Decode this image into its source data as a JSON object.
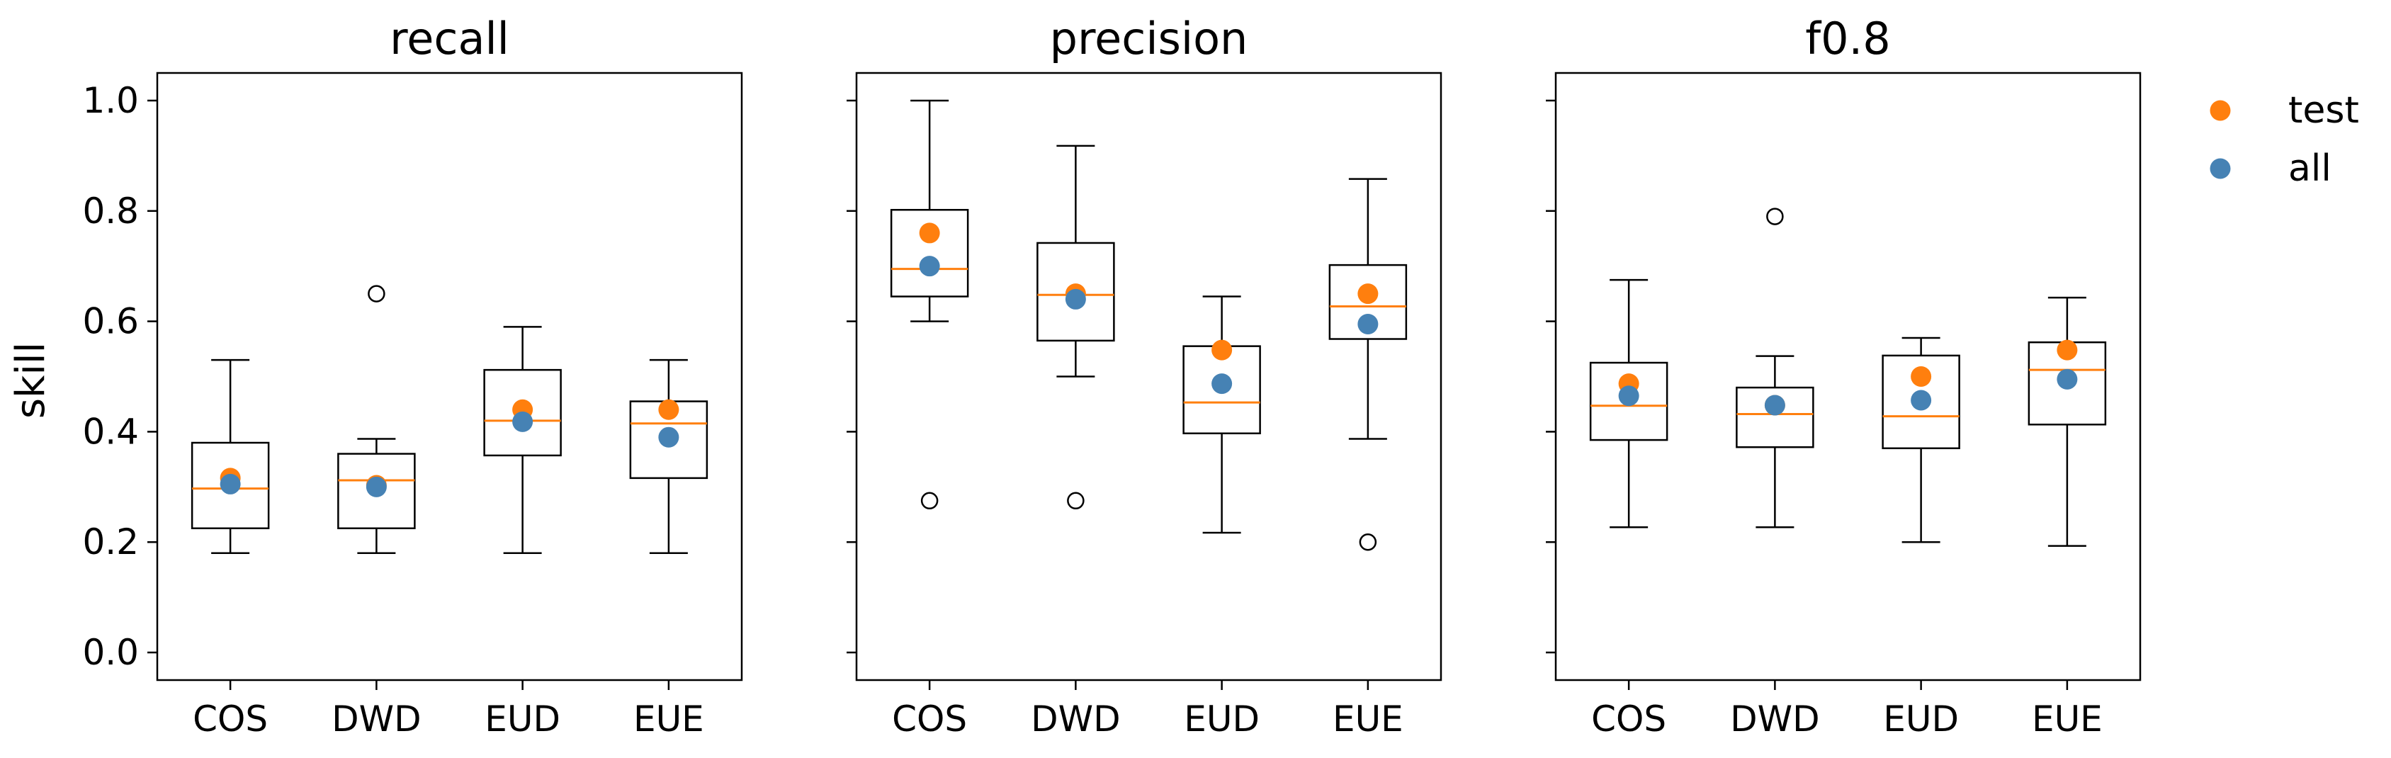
{
  "figure": {
    "ylabel": "skill"
  },
  "legend": {
    "placement": "right",
    "items": [
      {
        "label": "test",
        "color": "#ff7f0e"
      },
      {
        "label": "all",
        "color": "#4682b4"
      }
    ]
  },
  "chart_data": [
    {
      "type": "boxplot",
      "title": "recall",
      "ylabel": "skill",
      "ylim": [
        -0.05,
        1.05
      ],
      "yticks": [
        0.0,
        0.2,
        0.4,
        0.6,
        0.8,
        1.0
      ],
      "ytick_labels": [
        "0.0",
        "0.2",
        "0.4",
        "0.6",
        "0.8",
        "1.0"
      ],
      "categories": [
        "COS",
        "DWD",
        "EUD",
        "EUE"
      ],
      "boxes": [
        {
          "whisker_low": 0.18,
          "q1": 0.225,
          "median": 0.297,
          "q3": 0.38,
          "whisker_high": 0.53,
          "outliers": []
        },
        {
          "whisker_low": 0.18,
          "q1": 0.225,
          "median": 0.312,
          "q3": 0.36,
          "whisker_high": 0.387,
          "outliers": [
            0.65
          ]
        },
        {
          "whisker_low": 0.18,
          "q1": 0.357,
          "median": 0.42,
          "q3": 0.512,
          "whisker_high": 0.59,
          "outliers": []
        },
        {
          "whisker_low": 0.18,
          "q1": 0.316,
          "median": 0.415,
          "q3": 0.455,
          "whisker_high": 0.53,
          "outliers": []
        }
      ],
      "series": [
        {
          "name": "test",
          "values": [
            0.316,
            0.303,
            0.44,
            0.44
          ]
        },
        {
          "name": "all",
          "values": [
            0.305,
            0.3,
            0.418,
            0.39
          ]
        }
      ]
    },
    {
      "type": "boxplot",
      "title": "precision",
      "ylim": [
        -0.05,
        1.05
      ],
      "yticks": [
        0.0,
        0.2,
        0.4,
        0.6,
        0.8,
        1.0
      ],
      "categories": [
        "COS",
        "DWD",
        "EUD",
        "EUE"
      ],
      "boxes": [
        {
          "whisker_low": 0.6,
          "q1": 0.645,
          "median": 0.695,
          "q3": 0.802,
          "whisker_high": 1.0,
          "outliers": [
            0.275
          ]
        },
        {
          "whisker_low": 0.5,
          "q1": 0.565,
          "median": 0.648,
          "q3": 0.742,
          "whisker_high": 0.918,
          "outliers": [
            0.275
          ]
        },
        {
          "whisker_low": 0.217,
          "q1": 0.397,
          "median": 0.453,
          "q3": 0.555,
          "whisker_high": 0.645,
          "outliers": []
        },
        {
          "whisker_low": 0.387,
          "q1": 0.568,
          "median": 0.627,
          "q3": 0.702,
          "whisker_high": 0.858,
          "outliers": [
            0.2
          ]
        }
      ],
      "series": [
        {
          "name": "test",
          "values": [
            0.76,
            0.65,
            0.548,
            0.65
          ]
        },
        {
          "name": "all",
          "values": [
            0.7,
            0.64,
            0.487,
            0.595
          ]
        }
      ]
    },
    {
      "type": "boxplot",
      "title": "f0.8",
      "ylim": [
        -0.05,
        1.05
      ],
      "yticks": [
        0.0,
        0.2,
        0.4,
        0.6,
        0.8,
        1.0
      ],
      "categories": [
        "COS",
        "DWD",
        "EUD",
        "EUE"
      ],
      "boxes": [
        {
          "whisker_low": 0.227,
          "q1": 0.385,
          "median": 0.447,
          "q3": 0.525,
          "whisker_high": 0.675,
          "outliers": []
        },
        {
          "whisker_low": 0.227,
          "q1": 0.372,
          "median": 0.432,
          "q3": 0.48,
          "whisker_high": 0.537,
          "outliers": [
            0.79
          ]
        },
        {
          "whisker_low": 0.2,
          "q1": 0.37,
          "median": 0.428,
          "q3": 0.538,
          "whisker_high": 0.57,
          "outliers": []
        },
        {
          "whisker_low": 0.193,
          "q1": 0.413,
          "median": 0.512,
          "q3": 0.562,
          "whisker_high": 0.643,
          "outliers": []
        }
      ],
      "series": [
        {
          "name": "test",
          "values": [
            0.487,
            0.448,
            0.5,
            0.548
          ]
        },
        {
          "name": "all",
          "values": [
            0.465,
            0.448,
            0.457,
            0.495
          ]
        }
      ]
    }
  ],
  "colors": {
    "test": "#ff7f0e",
    "all": "#4682b4",
    "median": "#ff7f0e",
    "box": "#000000"
  }
}
